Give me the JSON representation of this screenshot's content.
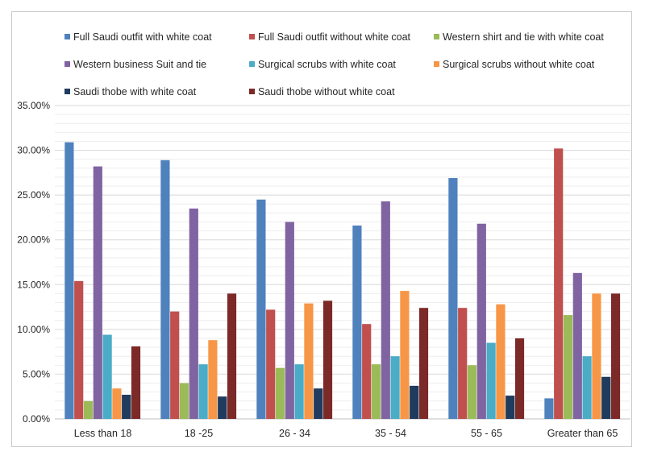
{
  "chart_data": {
    "type": "bar",
    "title": "",
    "xlabel": "",
    "ylabel": "",
    "ylim": [
      0,
      0.35
    ],
    "y_ticks": [
      "0.00%",
      "5.00%",
      "10.00%",
      "15.00%",
      "20.00%",
      "25.00%",
      "30.00%",
      "35.00%"
    ],
    "categories": [
      "Less than 18",
      "18 -25",
      "26 - 34",
      "35 - 54",
      "55 - 65",
      "Greater than 65"
    ],
    "legend_position": "top",
    "grid": true,
    "series": [
      {
        "name": "Full Saudi outfit with white coat",
        "color": "#4F81BD",
        "values": [
          0.309,
          0.289,
          0.245,
          0.216,
          0.269,
          0.023
        ]
      },
      {
        "name": "Full Saudi outfit without white coat",
        "color": "#C0504D",
        "values": [
          0.154,
          0.12,
          0.122,
          0.106,
          0.124,
          0.302
        ]
      },
      {
        "name": "Western shirt and tie with white coat",
        "color": "#9BBB59",
        "values": [
          0.02,
          0.04,
          0.057,
          0.061,
          0.06,
          0.116
        ]
      },
      {
        "name": "Western business Suit and tie",
        "color": "#8064A2",
        "values": [
          0.282,
          0.235,
          0.22,
          0.243,
          0.218,
          0.163
        ]
      },
      {
        "name": "Surgical scrubs with white coat",
        "color": "#4BACC6",
        "values": [
          0.094,
          0.061,
          0.061,
          0.07,
          0.085,
          0.07
        ]
      },
      {
        "name": "Surgical scrubs without white coat",
        "color": "#F79646",
        "values": [
          0.034,
          0.088,
          0.129,
          0.143,
          0.128,
          0.14
        ]
      },
      {
        "name": "Saudi thobe with white coat",
        "color": "#1F3B5E",
        "values": [
          0.027,
          0.025,
          0.034,
          0.037,
          0.026,
          0.047
        ]
      },
      {
        "name": "Saudi thobe without white coat",
        "color": "#7B2A28",
        "values": [
          0.081,
          0.14,
          0.132,
          0.124,
          0.09,
          0.14
        ]
      }
    ]
  }
}
